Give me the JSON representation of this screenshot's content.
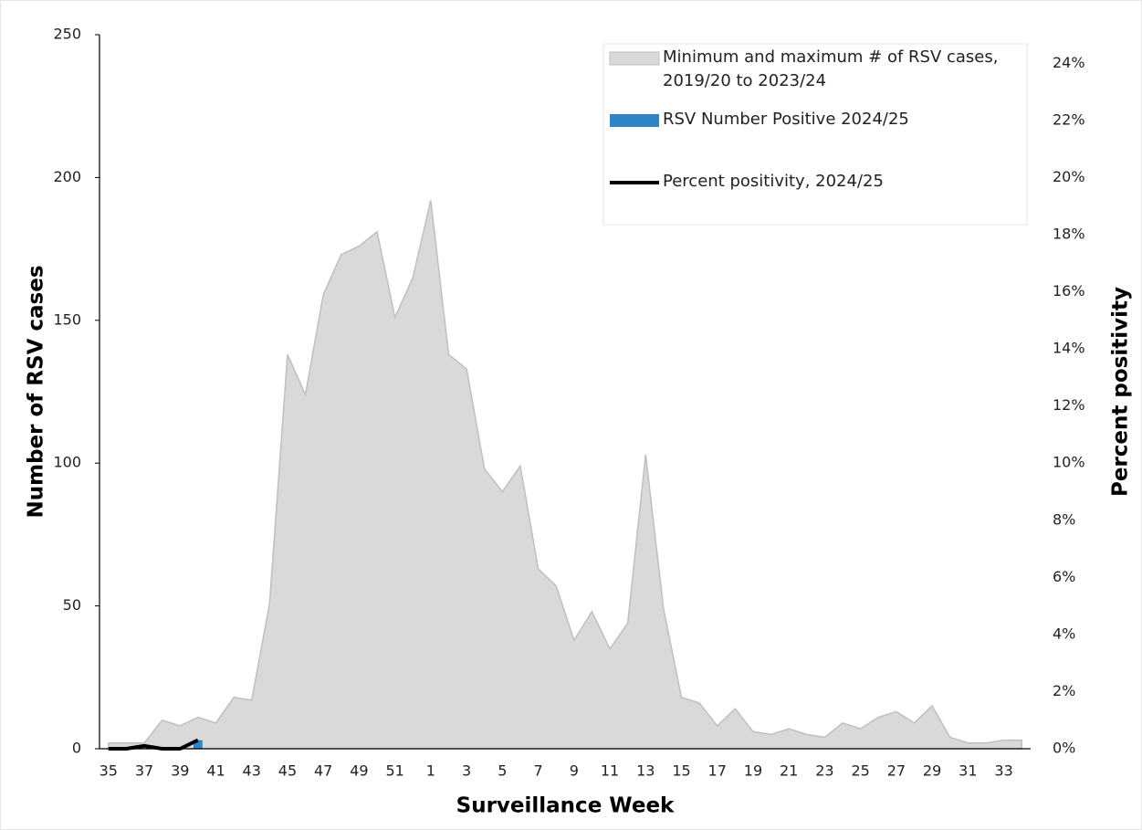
{
  "chart_data": {
    "type": "combo",
    "x_label": "Surveillance Week",
    "y_label": "Number of RSV cases",
    "y2_label": "Percent positivity",
    "categories": [
      "35",
      null,
      "37",
      null,
      "39",
      null,
      "41",
      null,
      "43",
      null,
      "45",
      null,
      "47",
      null,
      "49",
      null,
      "51",
      null,
      "1",
      null,
      "3",
      null,
      "5",
      null,
      "7",
      null,
      "9",
      null,
      "11",
      null,
      "13",
      null,
      "15",
      null,
      "17",
      null,
      "19",
      null,
      "21",
      null,
      "23",
      null,
      "25",
      null,
      "27",
      null,
      "29",
      null,
      "31",
      null,
      "33",
      null
    ],
    "ylim": [
      0,
      250
    ],
    "yticks": [
      0,
      50,
      100,
      150,
      200,
      250
    ],
    "y2lim": [
      0,
      25
    ],
    "y2ticks": [
      {
        "value": 0,
        "label": "0%"
      },
      {
        "value": 2,
        "label": "2%"
      },
      {
        "value": 4,
        "label": "4%"
      },
      {
        "value": 6,
        "label": "6%"
      },
      {
        "value": 8,
        "label": "8%"
      },
      {
        "value": 10,
        "label": "10%"
      },
      {
        "value": 12,
        "label": "12%"
      },
      {
        "value": 14,
        "label": "14%"
      },
      {
        "value": 16,
        "label": "16%"
      },
      {
        "value": 18,
        "label": "18%"
      },
      {
        "value": 20,
        "label": "20%"
      },
      {
        "value": 22,
        "label": "22%"
      },
      {
        "value": 24,
        "label": "24%"
      }
    ],
    "grid": false,
    "legend": "top-right",
    "series": [
      {
        "name": "Minimum and maximum # of RSV cases, 2019/20 to 2023/24",
        "type": "area",
        "color": "#d9d9d9",
        "values": [
          2,
          2,
          2,
          10,
          8,
          11,
          9,
          18,
          17,
          51,
          138,
          124,
          159,
          173,
          176,
          181,
          151,
          165,
          192,
          138,
          133,
          98,
          90,
          99,
          63,
          57,
          38,
          48,
          35,
          44,
          103,
          49,
          18,
          16,
          8,
          14,
          6,
          5,
          7,
          5,
          4,
          9,
          7,
          11,
          13,
          9,
          15,
          4,
          2,
          2,
          3,
          3
        ]
      },
      {
        "name": "RSV Number Positive 2024/25",
        "type": "bar",
        "color": "#2e86c9",
        "values": [
          0,
          0,
          0,
          0,
          0,
          3,
          null,
          null,
          null,
          null,
          null,
          null,
          null,
          null,
          null,
          null,
          null,
          null,
          null,
          null,
          null,
          null,
          null,
          null,
          null,
          null,
          null,
          null,
          null,
          null,
          null,
          null,
          null,
          null,
          null,
          null,
          null,
          null,
          null,
          null,
          null,
          null,
          null,
          null,
          null,
          null,
          null,
          null,
          null,
          null,
          null,
          null
        ]
      },
      {
        "name": "Percent positivity, 2024/25",
        "type": "line",
        "color": "#000000",
        "axis": "y2",
        "values": [
          0,
          0,
          0.1,
          0,
          0,
          0.3,
          null,
          null,
          null,
          null,
          null,
          null,
          null,
          null,
          null,
          null,
          null,
          null,
          null,
          null,
          null,
          null,
          null,
          null,
          null,
          null,
          null,
          null,
          null,
          null,
          null,
          null,
          null,
          null,
          null,
          null,
          null,
          null,
          null,
          null,
          null,
          null,
          null,
          null,
          null,
          null,
          null,
          null,
          null,
          null,
          null,
          null
        ]
      }
    ]
  }
}
